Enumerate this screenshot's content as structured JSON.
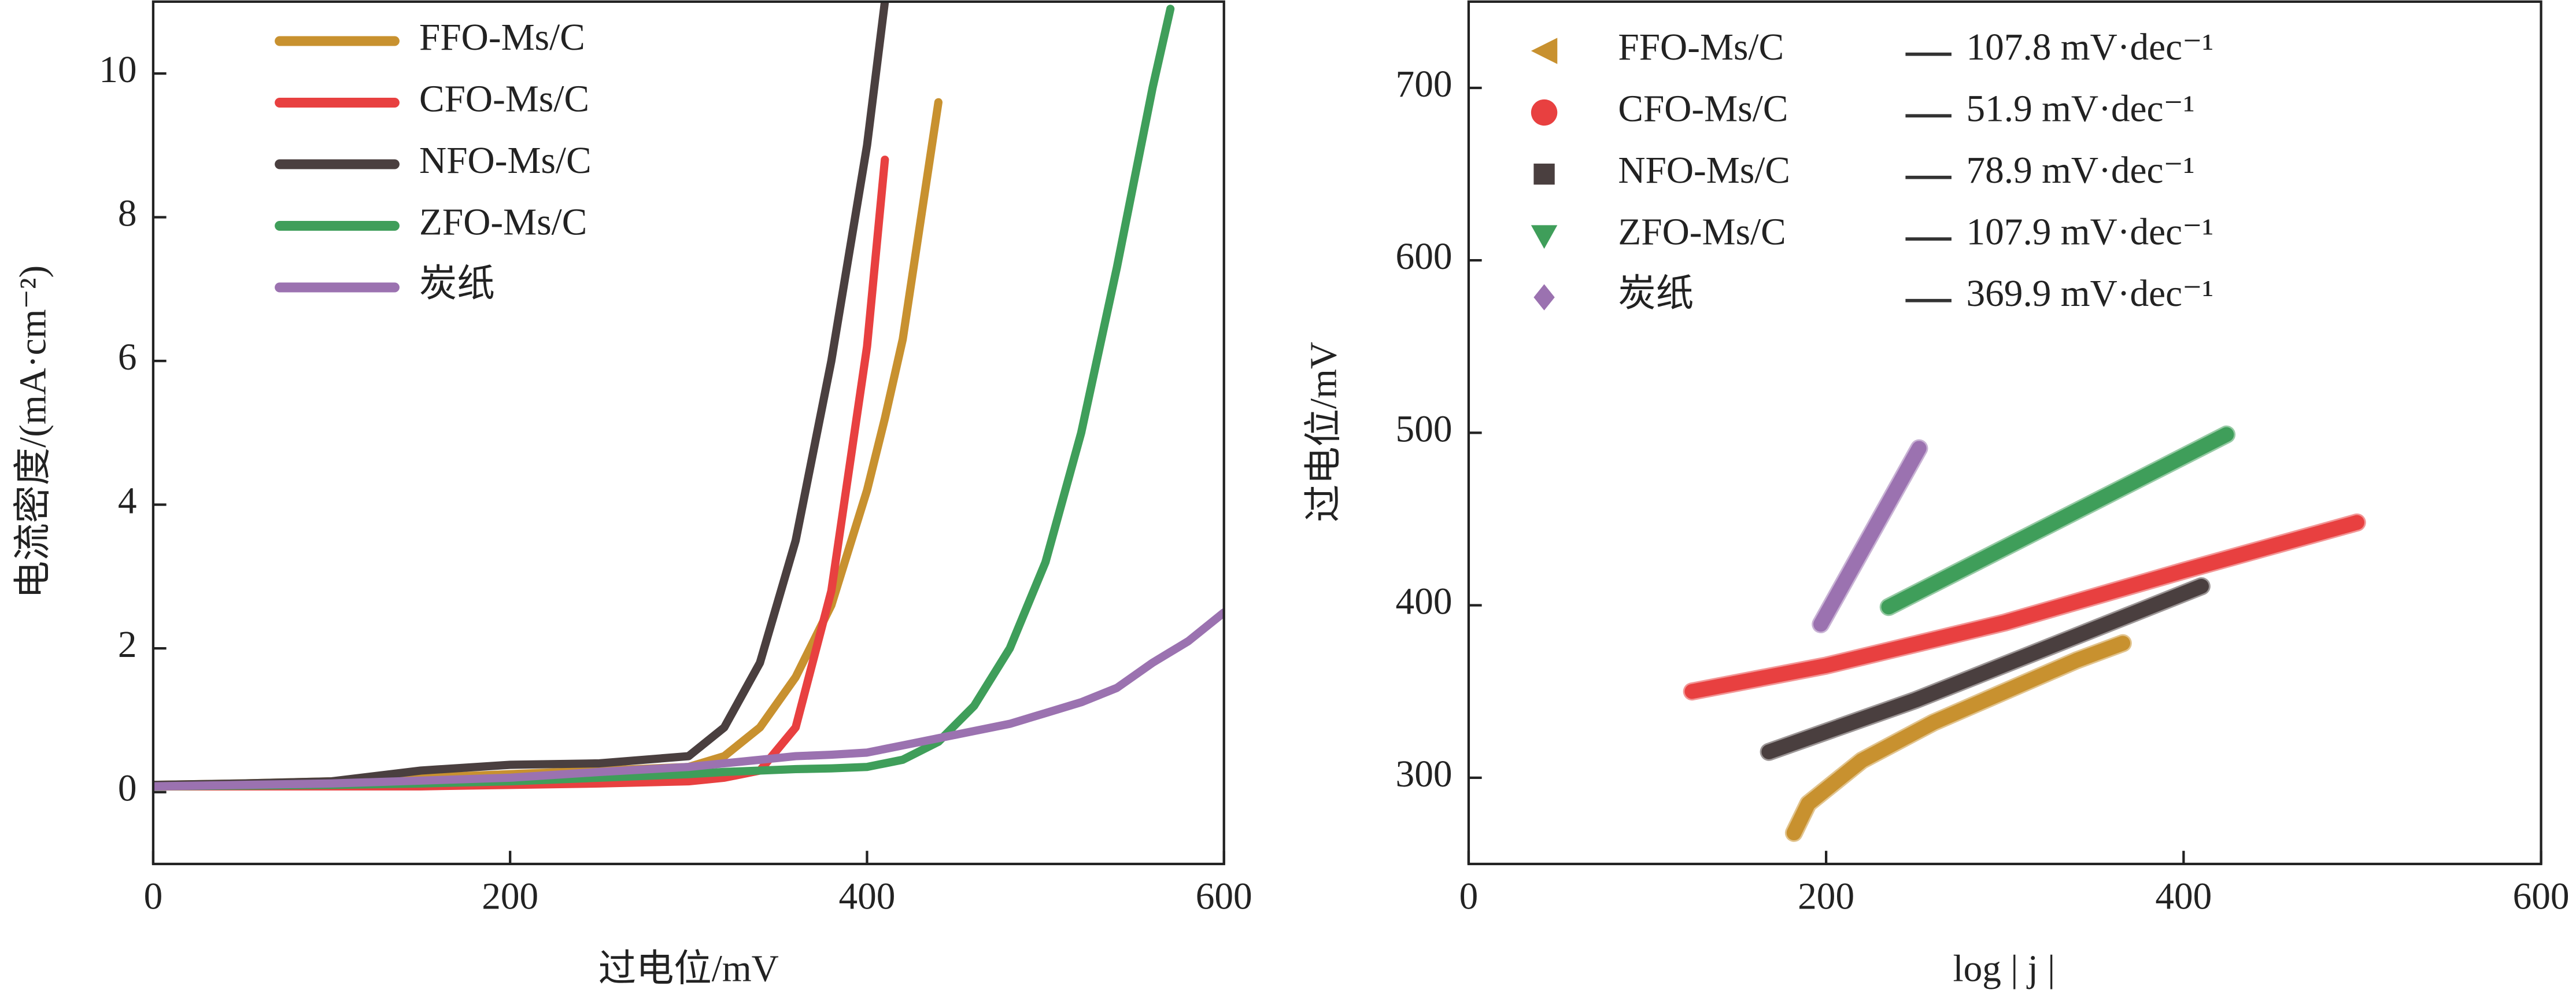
{
  "chart_data": [
    {
      "type": "line",
      "xlabel": "过电位/mV",
      "ylabel": "电流密度/(mA·cm⁻²)",
      "xlim": [
        0,
        600
      ],
      "ylim": [
        -1,
        11
      ],
      "xticks": [
        0,
        200,
        400,
        600
      ],
      "yticks": [
        0,
        2,
        4,
        6,
        8,
        10
      ],
      "legend": "upper left",
      "x": [
        0,
        50,
        100,
        150,
        200,
        250,
        300,
        320,
        340,
        360,
        380,
        400,
        410,
        420,
        440,
        460,
        480,
        500,
        520,
        540,
        560,
        570,
        580,
        600
      ],
      "series": [
        {
          "name": "FFO-Ms/C",
          "color": "#c8912f",
          "values": [
            0.1,
            0.12,
            0.15,
            0.2,
            0.25,
            0.3,
            0.35,
            0.5,
            0.9,
            1.6,
            2.6,
            4.2,
            5.2,
            6.3,
            9.6,
            null,
            null,
            null,
            null,
            null,
            null,
            null,
            null,
            null
          ]
        },
        {
          "name": "CFO-Ms/C",
          "color": "#e84040",
          "values": [
            0.08,
            0.08,
            0.08,
            0.08,
            0.1,
            0.12,
            0.15,
            0.2,
            0.3,
            0.9,
            2.8,
            6.2,
            8.8,
            null,
            null,
            null,
            null,
            null,
            null,
            null,
            null,
            null,
            null,
            null
          ]
        },
        {
          "name": "NFO-Ms/C",
          "color": "#4a3f3f",
          "values": [
            0.1,
            0.12,
            0.15,
            0.3,
            0.38,
            0.4,
            0.5,
            0.9,
            1.8,
            3.5,
            6,
            9,
            11,
            null,
            null,
            null,
            null,
            null,
            null,
            null,
            null,
            null,
            null,
            null
          ]
        },
        {
          "name": "ZFO-Ms/C",
          "color": "#3f9e5a",
          "values": [
            0.08,
            0.09,
            0.1,
            0.12,
            0.15,
            0.2,
            0.25,
            0.28,
            0.3,
            0.32,
            0.33,
            0.35,
            0.4,
            0.45,
            0.7,
            1.2,
            2,
            3.2,
            5,
            7.3,
            9.8,
            10.9,
            null,
            null
          ]
        },
        {
          "name": "炭纸",
          "color": "#9b72b0",
          "values": [
            0.08,
            0.1,
            0.12,
            0.16,
            0.2,
            0.28,
            0.35,
            0.4,
            0.45,
            0.5,
            0.52,
            0.55,
            0.6,
            0.65,
            0.75,
            0.85,
            0.95,
            1.1,
            1.25,
            1.45,
            1.8,
            1.95,
            2.1,
            2.5
          ]
        }
      ]
    },
    {
      "type": "line",
      "xlabel": "log | j |",
      "ylabel": "过电位/mV",
      "xlim": [
        0,
        600
      ],
      "ylim": [
        250,
        750
      ],
      "xticks": [
        0,
        200,
        400,
        600
      ],
      "yticks": [
        300,
        400,
        500,
        600,
        700
      ],
      "legend": "upper left",
      "series": [
        {
          "name": "FFO-Ms/C",
          "color": "#c8912f",
          "marker": "triangle-left",
          "slope_label": "107.8 mV·dec⁻¹",
          "x": [
            182,
            190,
            220,
            260,
            300,
            340,
            366
          ],
          "values": [
            268,
            285,
            310,
            332,
            350,
            368,
            378
          ]
        },
        {
          "name": "CFO-Ms/C",
          "color": "#e84040",
          "marker": "circle",
          "slope_label": "51.9 mV·dec⁻¹",
          "x": [
            125,
            200,
            300,
            400,
            497
          ],
          "values": [
            350,
            365,
            390,
            420,
            448
          ]
        },
        {
          "name": "NFO-Ms/C",
          "color": "#4a3f3f",
          "marker": "square",
          "slope_label": "78.9 mV·dec⁻¹",
          "x": [
            168,
            250,
            330,
            410
          ],
          "values": [
            315,
            345,
            378,
            411
          ]
        },
        {
          "name": "ZFO-Ms/C",
          "color": "#3f9e5a",
          "marker": "triangle-down",
          "slope_label": "107.9 mV·dec⁻¹",
          "x": [
            235,
            424
          ],
          "values": [
            399,
            499
          ]
        },
        {
          "name": "炭纸",
          "color": "#9b72b0",
          "marker": "diamond",
          "slope_label": "369.9 mV·dec⁻¹",
          "x": [
            197,
            252
          ],
          "values": [
            389,
            491
          ]
        }
      ]
    }
  ]
}
